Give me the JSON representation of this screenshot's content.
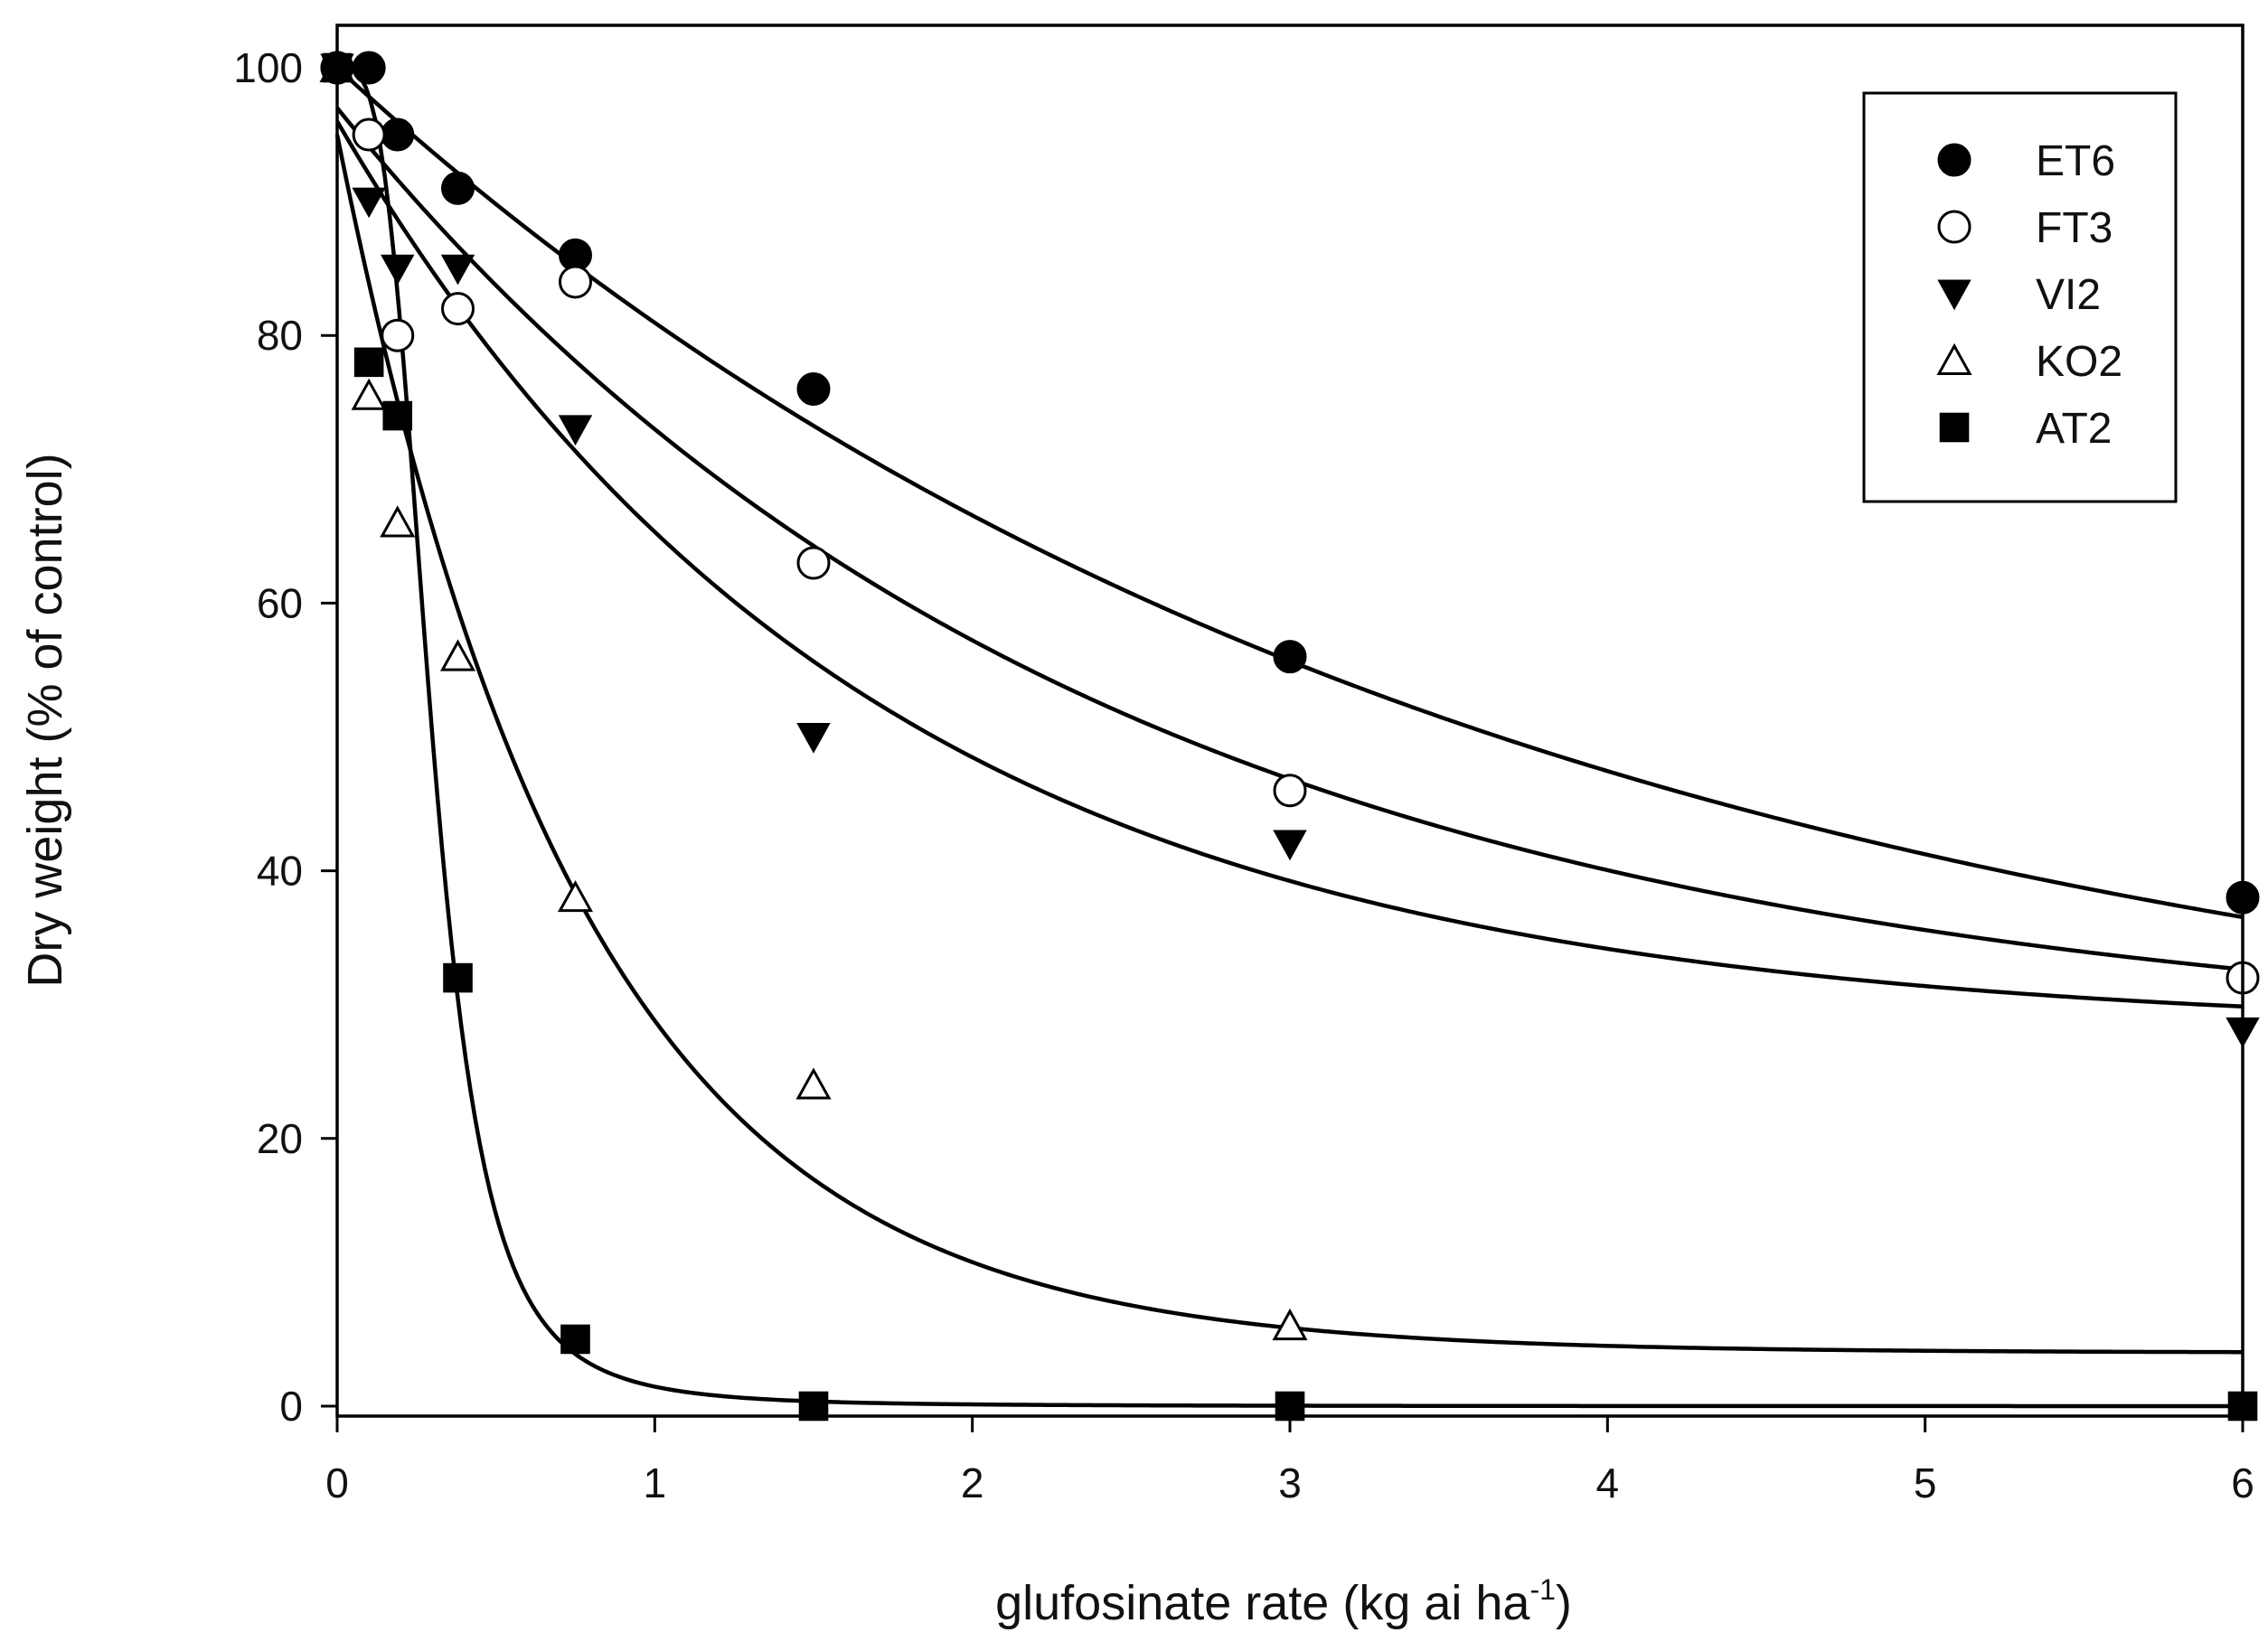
{
  "chart_data": {
    "type": "scatter",
    "title": "",
    "xlabel": "glufosinate rate (kg ai ha",
    "xlabel_sup": "-1",
    "xlabel_close": ")",
    "ylabel": "Dry weight (% of control)",
    "xlim": [
      0,
      6
    ],
    "ylim": [
      0,
      100
    ],
    "xticks": [
      0,
      1,
      2,
      3,
      4,
      5,
      6
    ],
    "yticks": [
      0,
      20,
      40,
      60,
      80,
      100
    ],
    "grid": false,
    "legend_position": "top-right",
    "series": [
      {
        "name": "ET6",
        "marker": "circle-filled",
        "x": [
          0,
          0.1,
          0.19,
          0.38,
          0.75,
          1.5,
          3,
          6
        ],
        "y": [
          100,
          100,
          95,
          91,
          86,
          76,
          56,
          38
        ],
        "fit": {
          "model": "exp-decay",
          "bottom": 22,
          "top": 100,
          "k": 0.28
        }
      },
      {
        "name": "FT3",
        "marker": "circle-open",
        "x": [
          0,
          0.1,
          0.19,
          0.38,
          0.75,
          1.5,
          3,
          6
        ],
        "y": [
          100,
          95,
          80,
          82,
          84,
          63,
          46,
          32
        ],
        "fit": {
          "model": "exp-decay",
          "bottom": 27,
          "top": 97,
          "k": 0.42
        }
      },
      {
        "name": "VI2",
        "marker": "triangle-down-filled",
        "x": [
          0,
          0.1,
          0.19,
          0.38,
          0.75,
          1.5,
          3,
          6
        ],
        "y": [
          100,
          90,
          85,
          85,
          73,
          50,
          42,
          28
        ],
        "fit": {
          "model": "exp-decay",
          "bottom": 28,
          "top": 96,
          "k": 0.6
        }
      },
      {
        "name": "KO2",
        "marker": "triangle-up-open",
        "x": [
          0,
          0.1,
          0.19,
          0.38,
          0.75,
          1.5,
          3
        ],
        "y": [
          100,
          75.5,
          66,
          56,
          38,
          24,
          6
        ],
        "fit": {
          "model": "exp-decay",
          "bottom": 4,
          "top": 95,
          "k": 1.3
        }
      },
      {
        "name": "AT2",
        "marker": "square-filled",
        "x": [
          0,
          0.1,
          0.19,
          0.38,
          0.75,
          1.5,
          3,
          6
        ],
        "y": [
          100,
          78,
          74,
          32,
          5,
          0,
          0,
          0
        ],
        "fit": {
          "model": "log-logistic",
          "bottom": 0,
          "top": 100,
          "ed50": 0.3,
          "slope": 3.5
        }
      }
    ]
  }
}
